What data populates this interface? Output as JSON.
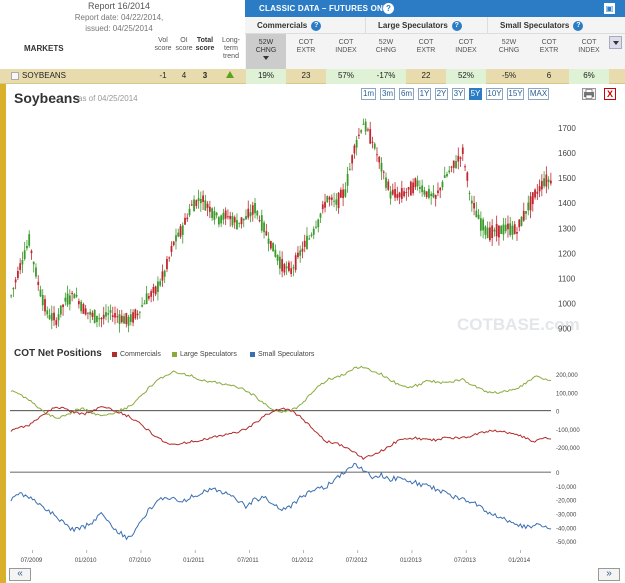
{
  "report": {
    "title": "Report 16/2014",
    "date": "Report date: 04/22/2014,",
    "issued": "issued: 04/25/2014"
  },
  "markets_label": "MARKETS",
  "score_headers": [
    {
      "l1": "Vol",
      "l2": "score"
    },
    {
      "l1": "OI",
      "l2": "score"
    },
    {
      "l1": "Total",
      "l2": "score"
    },
    {
      "l1": "Long-",
      "l2": "term",
      "l3": "trend"
    }
  ],
  "classic_label": "CLASSIC DATA – FUTURES ONLY",
  "groups": [
    "Commercials",
    "Large Speculators",
    "Small Speculators"
  ],
  "sub_headers": [
    {
      "l1": "52W",
      "l2": "CHNG"
    },
    {
      "l1": "COT",
      "l2": "EXTR"
    },
    {
      "l1": "COT",
      "l2": "INDEX"
    }
  ],
  "row": {
    "name": "SOYBEANS",
    "vol": "-1",
    "oi": "4",
    "total": "3",
    "c_chng": "19%",
    "c_extr": "23",
    "c_index": "57%",
    "l_chng": "-17%",
    "l_extr": "22",
    "l_index": "52%",
    "s_chng": "-5%",
    "s_extr": "6",
    "s_index": "6%"
  },
  "chart": {
    "title": "Soybeans",
    "asof": "as of 04/25/2014",
    "ranges": [
      "1m",
      "3m",
      "6m",
      "1Y",
      "2Y",
      "3Y",
      "5Y",
      "10Y",
      "15Y",
      "MAX"
    ],
    "active_range": "5Y",
    "close_label": "X",
    "watermark": "COTBASE.com",
    "cot_title": "COT Net Positions",
    "legend": [
      {
        "name": "Commercials",
        "color": "#b22b2b"
      },
      {
        "name": "Large Speculators",
        "color": "#8aab3c"
      },
      {
        "name": "Small Speculators",
        "color": "#3b6fb0"
      }
    ],
    "x_ticks": [
      "07/2009",
      "01/2010",
      "07/2010",
      "01/2011",
      "07/2011",
      "01/2012",
      "07/2012",
      "01/2013",
      "07/2013",
      "01/2014"
    ],
    "nav_prev": "«",
    "nav_next": "»"
  },
  "chart_data": [
    {
      "type": "candlestick",
      "title": "Soybeans",
      "ylim": [
        870,
        1780
      ],
      "y_ticks": [
        900,
        1000,
        1100,
        1200,
        1300,
        1400,
        1500,
        1600,
        1700
      ],
      "x": [
        "2009-05",
        "2009-06",
        "2009-07",
        "2009-08",
        "2009-09",
        "2009-10",
        "2009-11",
        "2009-12",
        "2010-01",
        "2010-02",
        "2010-03",
        "2010-04",
        "2010-05",
        "2010-06",
        "2010-07",
        "2010-08",
        "2010-09",
        "2010-10",
        "2010-11",
        "2010-12",
        "2011-01",
        "2011-02",
        "2011-03",
        "2011-04",
        "2011-05",
        "2011-06",
        "2011-07",
        "2011-08",
        "2011-09",
        "2011-10",
        "2011-11",
        "2011-12",
        "2012-01",
        "2012-02",
        "2012-03",
        "2012-04",
        "2012-05",
        "2012-06",
        "2012-07",
        "2012-08",
        "2012-09",
        "2012-10",
        "2012-11",
        "2012-12",
        "2013-01",
        "2013-02",
        "2013-03",
        "2013-04",
        "2013-05",
        "2013-06",
        "2013-07",
        "2013-08",
        "2013-09",
        "2013-10",
        "2013-11",
        "2013-12",
        "2014-01",
        "2014-02",
        "2014-03",
        "2014-04"
      ],
      "values": [
        1030,
        1150,
        1250,
        1080,
        960,
        930,
        1010,
        1040,
        980,
        950,
        940,
        960,
        945,
        930,
        960,
        1020,
        1050,
        1120,
        1240,
        1300,
        1390,
        1420,
        1380,
        1340,
        1350,
        1320,
        1340,
        1380,
        1300,
        1220,
        1150,
        1130,
        1200,
        1260,
        1330,
        1420,
        1400,
        1450,
        1620,
        1720,
        1650,
        1540,
        1440,
        1430,
        1450,
        1480,
        1440,
        1420,
        1500,
        1550,
        1600,
        1400,
        1320,
        1280,
        1290,
        1300,
        1290,
        1370,
        1430,
        1490
      ]
    },
    {
      "type": "line",
      "title": "COT Net Positions",
      "series": [
        {
          "name": "Large Speculators",
          "values": [
            110000,
            90000,
            60000,
            20000,
            -20000,
            -40000,
            -30000,
            0,
            10000,
            -10000,
            -30000,
            -20000,
            0,
            20000,
            60000,
            110000,
            160000,
            190000,
            210000,
            200000,
            190000,
            170000,
            160000,
            150000,
            140000,
            130000,
            110000,
            80000,
            40000,
            10000,
            -10000,
            0,
            30000,
            80000,
            130000,
            170000,
            180000,
            200000,
            230000,
            240000,
            220000,
            200000,
            170000,
            140000,
            130000,
            140000,
            160000,
            160000,
            150000,
            160000,
            170000,
            140000,
            120000,
            100000,
            100000,
            110000,
            120000,
            150000,
            190000,
            170000
          ]
        },
        {
          "name": "Commercials",
          "values": [
            -110000,
            -90000,
            -80000,
            -40000,
            -10000,
            20000,
            10000,
            -10000,
            -20000,
            0,
            20000,
            10000,
            -10000,
            -30000,
            -60000,
            -100000,
            -140000,
            -170000,
            -190000,
            -180000,
            -170000,
            -160000,
            -150000,
            -140000,
            -130000,
            -120000,
            -100000,
            -70000,
            -30000,
            0,
            10000,
            0,
            -30000,
            -80000,
            -130000,
            -170000,
            -180000,
            -200000,
            -230000,
            -260000,
            -240000,
            -220000,
            -190000,
            -160000,
            -150000,
            -150000,
            -160000,
            -160000,
            -150000,
            -150000,
            -150000,
            -140000,
            -120000,
            -110000,
            -110000,
            -120000,
            -130000,
            -150000,
            -170000,
            -150000
          ]
        },
        {
          "name": "Small Speculators",
          "values": [
            -20000,
            -15000,
            -18000,
            -22000,
            -28000,
            -32000,
            -38000,
            -42000,
            -40000,
            -36000,
            -30000,
            -38000,
            -44000,
            -48000,
            -40000,
            -30000,
            -22000,
            -18000,
            -20000,
            -22000,
            -18000,
            -15000,
            -12000,
            -14000,
            -16000,
            -20000,
            -25000,
            -20000,
            -18000,
            -22000,
            -28000,
            -25000,
            -18000,
            -15000,
            -12000,
            -10000,
            -5000,
            0,
            5000,
            2000,
            -3000,
            -2000,
            -5000,
            -4000,
            -6000,
            -8000,
            -10000,
            -12000,
            -15000,
            -18000,
            -20000,
            -22000,
            -25000,
            -30000,
            -32000,
            -35000,
            -38000,
            -40000,
            -38000,
            -40000
          ]
        }
      ],
      "y_ticks_upper": [
        200000,
        100000,
        0,
        -100000,
        -200000
      ],
      "y_ticks_lower": [
        0,
        -10000,
        -20000,
        -30000,
        -40000,
        -50000
      ]
    }
  ]
}
